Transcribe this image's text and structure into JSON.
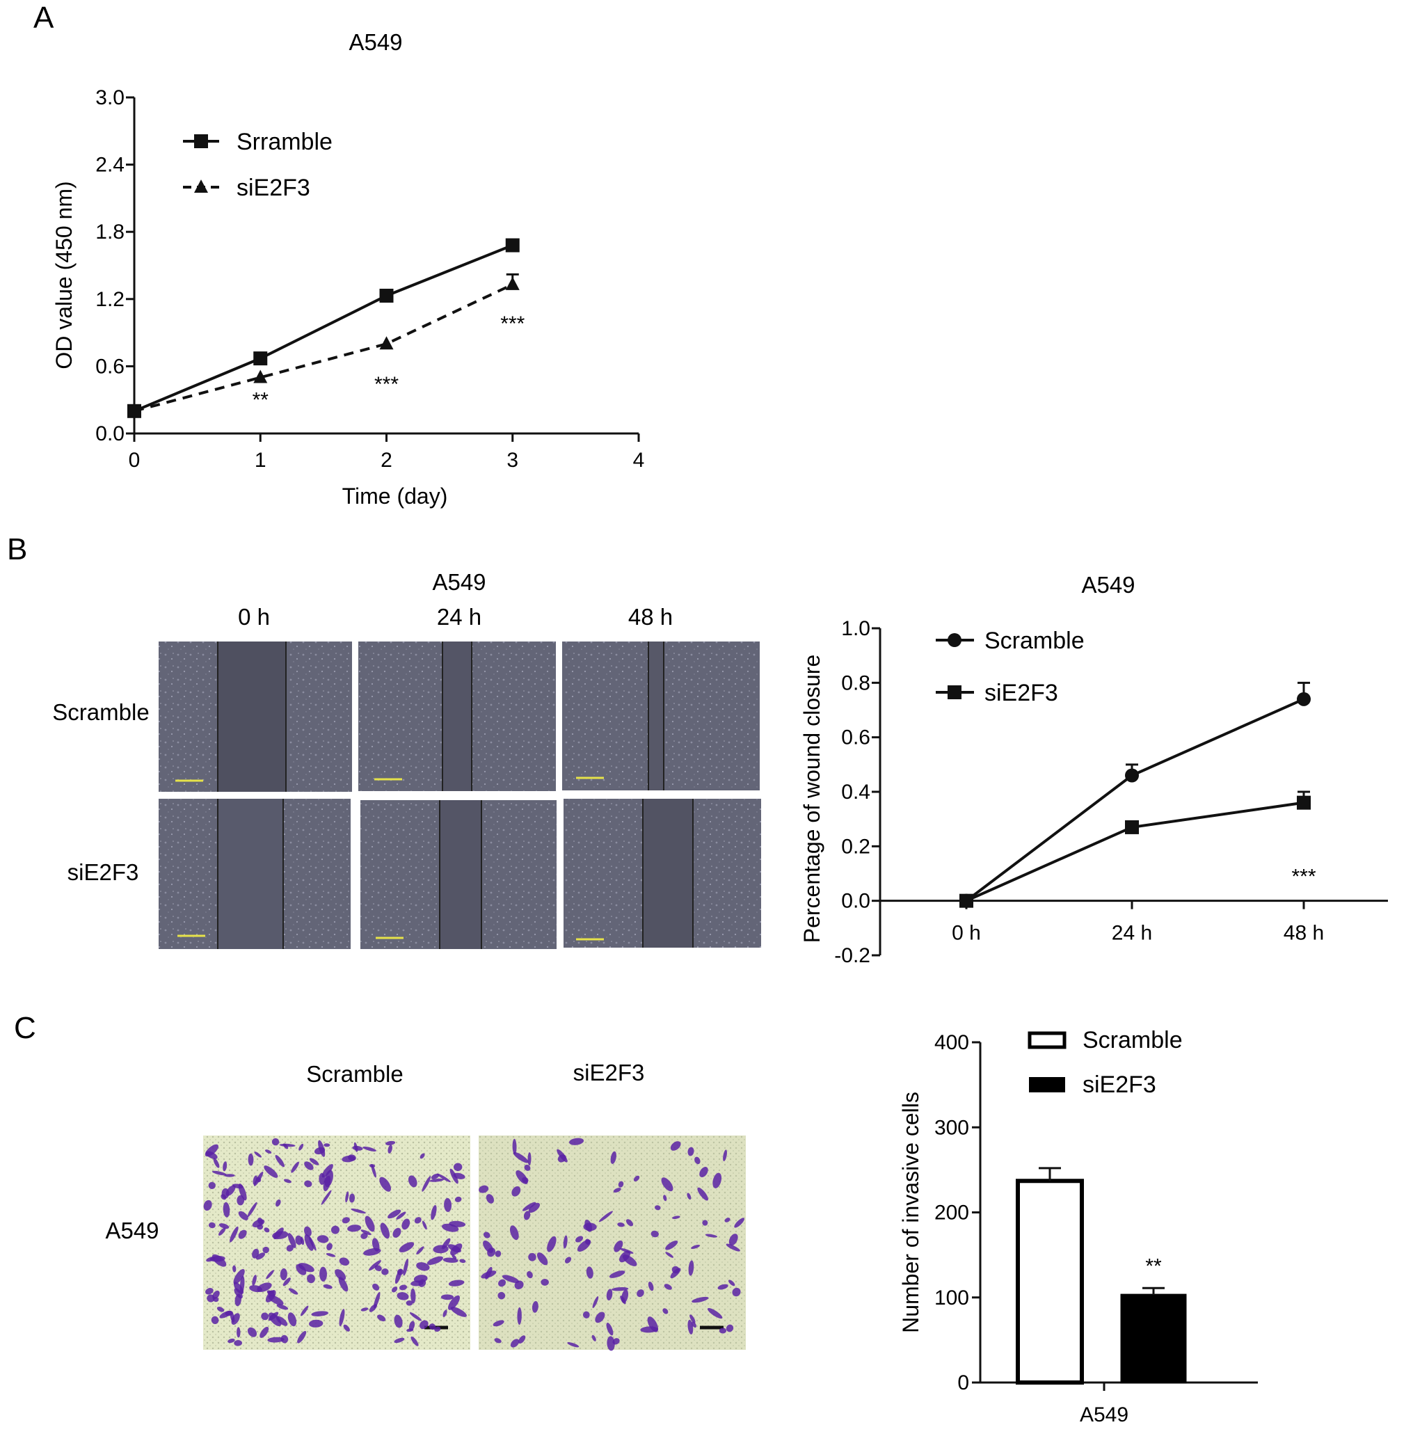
{
  "panels": [
    {
      "letter": "A"
    },
    {
      "letter": "B"
    },
    {
      "letter": "C"
    }
  ],
  "panelB": {
    "title": "A549",
    "columns": [
      "0 h",
      "24 h",
      "48 h"
    ],
    "rows": [
      "Scramble",
      "siE2F3"
    ]
  },
  "panelC": {
    "columns": [
      "Scramble",
      "siE2F3"
    ],
    "row": "A549"
  },
  "chart_data": [
    {
      "id": "A",
      "type": "line",
      "title": "A549",
      "xlabel": "Time (day)",
      "ylabel": "OD value (450 nm)",
      "xlim": [
        0,
        4
      ],
      "ylim": [
        0,
        3.0
      ],
      "xticks": [
        "0",
        "1",
        "2",
        "3",
        "4"
      ],
      "yticks": [
        "0.0",
        "0.6",
        "1.2",
        "1.8",
        "2.4",
        "3.0"
      ],
      "x": [
        0,
        1,
        2,
        3
      ],
      "series": [
        {
          "name": "Srramble",
          "marker": "square",
          "dash": "solid",
          "values": [
            0.2,
            0.67,
            1.23,
            1.68
          ],
          "err": [
            0.02,
            0.04,
            0.03,
            0.03
          ]
        },
        {
          "name": "siE2F3",
          "marker": "triangle",
          "dash": "dashed",
          "values": [
            0.2,
            0.5,
            0.8,
            1.33
          ],
          "err": [
            0.02,
            0.02,
            0.02,
            0.09
          ]
        }
      ],
      "annotations": [
        {
          "x": 1,
          "y": 0.3,
          "text": "**"
        },
        {
          "x": 2,
          "y": 0.44,
          "text": "***"
        },
        {
          "x": 3,
          "y": 0.98,
          "text": "***"
        }
      ],
      "legend": "top-left",
      "grid": false
    },
    {
      "id": "B",
      "type": "line",
      "title": "A549",
      "xlabel": "",
      "ylabel": "Percentage of wound closure",
      "categories": [
        "0 h",
        "24 h",
        "48 h"
      ],
      "ylim": [
        -0.2,
        1.0
      ],
      "yticks": [
        "-0.2",
        "0.0",
        "0.2",
        "0.4",
        "0.6",
        "0.8",
        "1.0"
      ],
      "series": [
        {
          "name": "Scramble",
          "marker": "circle",
          "values": [
            0.0,
            0.46,
            0.74
          ],
          "err": [
            0.0,
            0.04,
            0.06
          ]
        },
        {
          "name": "siE2F3",
          "marker": "square",
          "values": [
            0.0,
            0.27,
            0.36
          ],
          "err": [
            0.0,
            0.02,
            0.04
          ]
        }
      ],
      "annotations": [
        {
          "category": "48 h",
          "y": 0.09,
          "text": "***"
        }
      ],
      "legend": "top-left",
      "grid": false
    },
    {
      "id": "C",
      "type": "bar",
      "title": "",
      "xlabel": "",
      "ylabel": "Number of invasive cells",
      "categories": [
        "A549"
      ],
      "ylim": [
        0,
        400
      ],
      "yticks": [
        "0",
        "100",
        "200",
        "300",
        "400"
      ],
      "series": [
        {
          "name": "Scramble",
          "fill": "white",
          "values": [
            237
          ],
          "err": [
            15
          ]
        },
        {
          "name": "siE2F3",
          "fill": "black",
          "values": [
            103
          ],
          "err": [
            8
          ]
        }
      ],
      "annotations": [
        {
          "series": "siE2F3",
          "text": "**"
        }
      ],
      "legend": "top-right",
      "grid": false
    }
  ],
  "colors": {
    "ink": "#111111",
    "scratch_bg": "#5f6070",
    "scratch_gap": "#4d4e5c",
    "scale_bar_yellow": "#e6e24a",
    "transwell_bg": "#e7eccd",
    "cell_violet": "#5a22a4"
  }
}
